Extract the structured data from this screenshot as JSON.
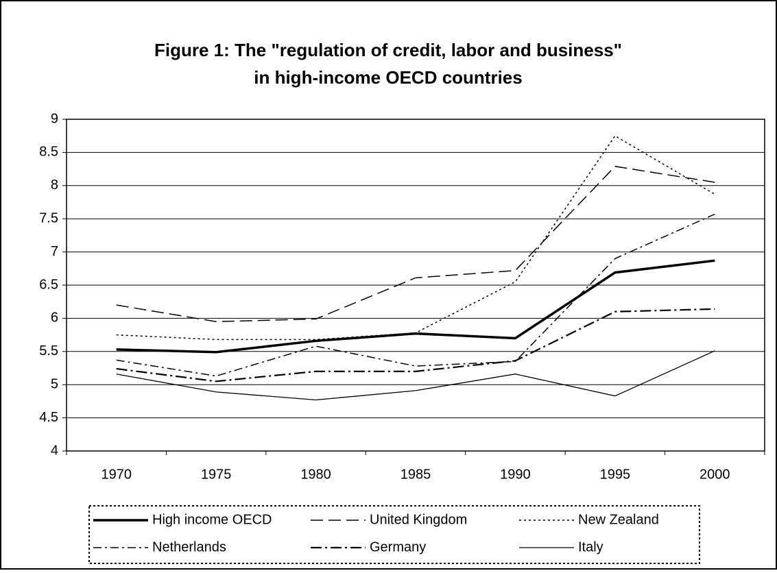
{
  "chart_data": {
    "type": "line",
    "title": [
      "Figure 1: The \"regulation of credit, labor and business\"",
      "in high-income OECD countries"
    ],
    "categories": [
      "1970",
      "1975",
      "1980",
      "1985",
      "1990",
      "1995",
      "2000"
    ],
    "series": [
      {
        "name": "High income OECD",
        "color": "#000000",
        "width": 3.5,
        "dash": "none",
        "values": [
          5.53,
          5.49,
          5.66,
          5.77,
          5.7,
          6.69,
          6.87
        ]
      },
      {
        "name": "United Kingdom",
        "color": "#000000",
        "width": 1.5,
        "dash": "18 8",
        "values": [
          6.2,
          5.95,
          5.99,
          6.61,
          6.72,
          8.29,
          8.05
        ]
      },
      {
        "name": "New Zealand",
        "color": "#000000",
        "width": 1.5,
        "dash": "3 4",
        "values": [
          5.75,
          5.68,
          5.68,
          5.78,
          6.55,
          8.75,
          7.87
        ]
      },
      {
        "name": "Netherlands",
        "color": "#000000",
        "width": 1.5,
        "dash": "12 5 3 5",
        "values": [
          5.37,
          5.13,
          5.58,
          5.28,
          5.35,
          6.9,
          7.57
        ]
      },
      {
        "name": "Germany",
        "color": "#000000",
        "width": 2.2,
        "dash": "16 5 3 5",
        "values": [
          5.24,
          5.05,
          5.2,
          5.2,
          5.36,
          6.1,
          6.14
        ]
      },
      {
        "name": "Italy",
        "color": "#000000",
        "width": 1.3,
        "dash": "none",
        "values": [
          5.16,
          4.89,
          4.77,
          4.91,
          5.16,
          4.83,
          5.51
        ]
      }
    ],
    "ylim": [
      4,
      9
    ],
    "yticks": [
      4,
      4.5,
      5,
      5.5,
      6,
      6.5,
      7,
      7.5,
      8,
      8.5,
      9
    ],
    "grid": true,
    "legend": "bottom"
  }
}
